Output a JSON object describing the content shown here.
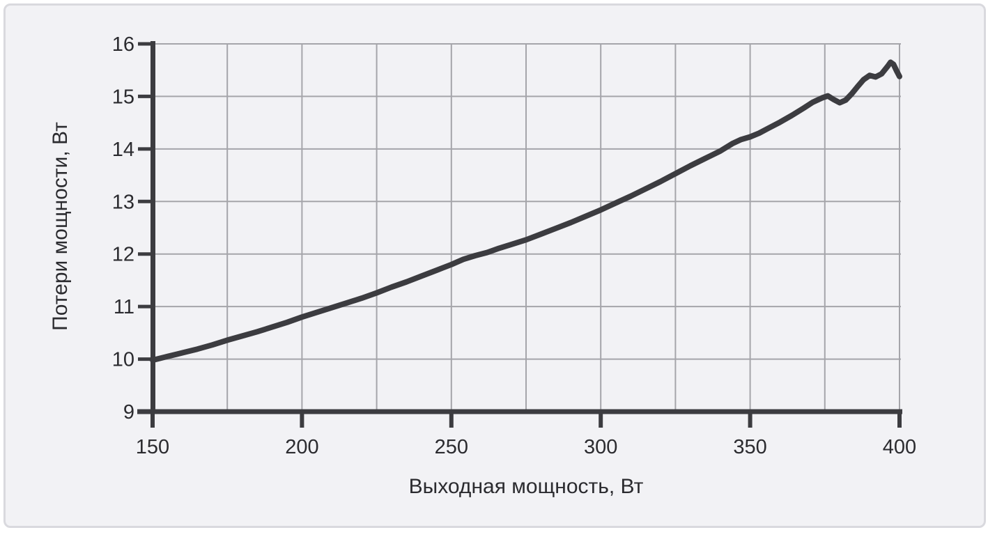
{
  "chart_data": {
    "type": "line",
    "title": "",
    "xlabel": "Выходная мощность, Вт",
    "ylabel": "Потери мощности, Вт",
    "xlim": [
      150,
      400
    ],
    "ylim": [
      9,
      16
    ],
    "x_ticks": [
      150,
      200,
      250,
      300,
      350,
      400
    ],
    "y_ticks": [
      9,
      10,
      11,
      12,
      13,
      14,
      15,
      16
    ],
    "x_grid_step": 25,
    "y_grid_step": 1,
    "grid": true,
    "legend_position": "none",
    "series": [
      {
        "name": "Потери мощности",
        "x": [
          150,
          155,
          160,
          165,
          170,
          175,
          180,
          185,
          190,
          195,
          200,
          205,
          210,
          215,
          220,
          225,
          230,
          235,
          240,
          245,
          250,
          254,
          258,
          262,
          266,
          270,
          275,
          280,
          285,
          290,
          295,
          300,
          305,
          310,
          315,
          320,
          325,
          330,
          335,
          340,
          344,
          347,
          350,
          353,
          356,
          360,
          364,
          368,
          371,
          374,
          376,
          378,
          380,
          382,
          384,
          386,
          388,
          390,
          392,
          394,
          396,
          397,
          398,
          399,
          400
        ],
        "y": [
          9.98,
          10.05,
          10.12,
          10.19,
          10.27,
          10.36,
          10.44,
          10.52,
          10.61,
          10.7,
          10.8,
          10.89,
          10.98,
          11.07,
          11.16,
          11.26,
          11.37,
          11.47,
          11.58,
          11.69,
          11.8,
          11.9,
          11.97,
          12.03,
          12.11,
          12.18,
          12.27,
          12.38,
          12.49,
          12.6,
          12.72,
          12.84,
          12.97,
          13.1,
          13.24,
          13.38,
          13.53,
          13.68,
          13.82,
          13.96,
          14.1,
          14.18,
          14.23,
          14.3,
          14.39,
          14.51,
          14.64,
          14.78,
          14.89,
          14.97,
          15.01,
          14.94,
          14.88,
          14.93,
          15.05,
          15.19,
          15.32,
          15.4,
          15.37,
          15.43,
          15.57,
          15.65,
          15.61,
          15.49,
          15.38
        ]
      }
    ]
  },
  "colors": {
    "card_background": "#f2f2f5",
    "card_border": "#d9d9de",
    "grid": "#a5a5aa",
    "axis": "#3c3c40",
    "curve": "#3c3c40",
    "text": "#2b2b2f"
  }
}
